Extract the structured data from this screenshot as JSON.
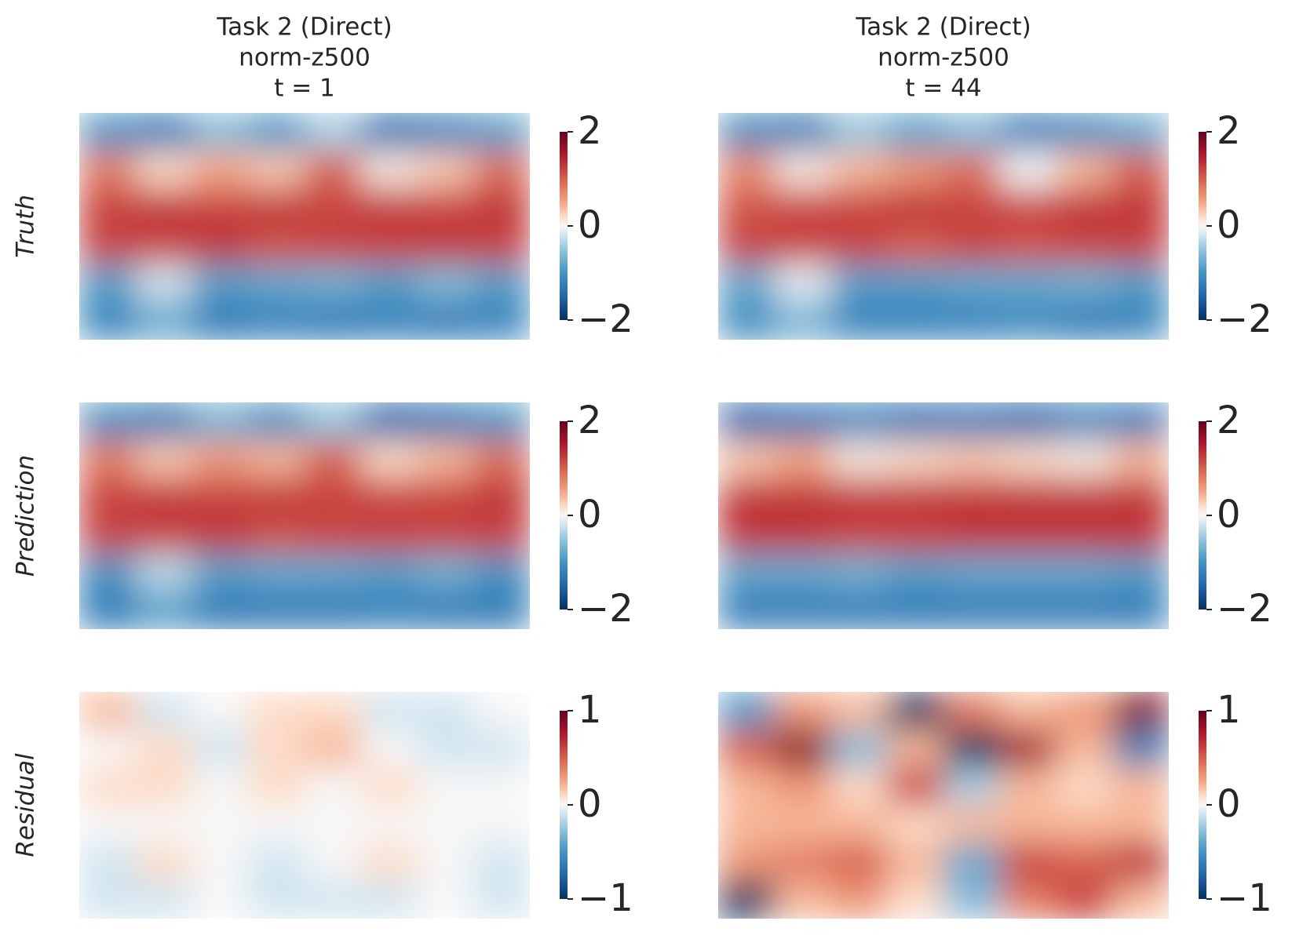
{
  "chart_data": [
    {
      "type": "heatmap",
      "title": [
        "Task 2 (Direct)",
        "norm-z500",
        "t = 1"
      ],
      "ylabel": "Truth",
      "colormap": "RdBu_r",
      "zlim": [
        -2,
        2
      ],
      "zticks": [
        2,
        0,
        {
          "value": -2,
          "label": "−2"
        }
      ],
      "values": [
        [
          -1.0,
          -1.3,
          -0.6,
          -1.0,
          -0.4,
          -1.4,
          -1.2,
          -0.9
        ],
        [
          0.8,
          0.2,
          0.5,
          0.3,
          1.0,
          0.1,
          0.3,
          0.9
        ],
        [
          1.2,
          1.3,
          1.2,
          1.3,
          1.2,
          1.3,
          1.2,
          1.3
        ],
        [
          1.2,
          1.2,
          1.3,
          1.1,
          1.2,
          1.2,
          1.3,
          1.2
        ],
        [
          -0.9,
          -0.2,
          -0.9,
          -0.8,
          -0.7,
          -0.9,
          -0.6,
          -0.9
        ],
        [
          -1.2,
          -0.8,
          -1.3,
          -1.2,
          -1.3,
          -1.2,
          -1.3,
          -1.2
        ]
      ]
    },
    {
      "type": "heatmap",
      "title": [
        "Task 2 (Direct)",
        "norm-z500",
        "t = 44"
      ],
      "colormap": "RdBu_r",
      "zlim": [
        -2,
        2
      ],
      "zticks": [
        2,
        0,
        {
          "value": -2,
          "label": "−2"
        }
      ],
      "values": [
        [
          -1.1,
          -1.3,
          -0.5,
          -0.9,
          -0.6,
          -1.3,
          -1.1,
          -0.8
        ],
        [
          0.7,
          0.1,
          0.4,
          0.6,
          0.9,
          0.0,
          0.4,
          1.0
        ],
        [
          1.1,
          1.2,
          1.2,
          1.3,
          1.2,
          1.2,
          1.3,
          1.3
        ],
        [
          1.2,
          1.2,
          1.2,
          1.0,
          1.2,
          1.1,
          1.2,
          1.2
        ],
        [
          -0.8,
          -0.1,
          -0.9,
          -0.9,
          -0.8,
          -0.8,
          -0.7,
          -0.9
        ],
        [
          -1.1,
          -0.7,
          -1.2,
          -1.2,
          -1.2,
          -1.1,
          -1.3,
          -1.2
        ]
      ]
    },
    {
      "type": "heatmap",
      "ylabel": "Prediction",
      "colormap": "RdBu_r",
      "zlim": [
        -2,
        2
      ],
      "zticks": [
        2,
        0,
        {
          "value": -2,
          "label": "−2"
        }
      ],
      "values": [
        [
          -1.1,
          -1.3,
          -0.7,
          -1.1,
          -0.5,
          -1.5,
          -1.3,
          -1.0
        ],
        [
          0.8,
          0.3,
          0.6,
          0.4,
          1.0,
          0.2,
          0.4,
          0.9
        ],
        [
          1.2,
          1.3,
          1.2,
          1.3,
          1.2,
          1.2,
          1.2,
          1.3
        ],
        [
          1.2,
          1.2,
          1.3,
          1.1,
          1.2,
          1.2,
          1.2,
          1.2
        ],
        [
          -1.0,
          -0.3,
          -0.9,
          -0.8,
          -0.8,
          -0.9,
          -0.7,
          -1.0
        ],
        [
          -1.3,
          -0.9,
          -1.3,
          -1.3,
          -1.3,
          -1.2,
          -1.3,
          -1.3
        ]
      ]
    },
    {
      "type": "heatmap",
      "colormap": "RdBu_r",
      "zlim": [
        -2,
        2
      ],
      "zticks": [
        2,
        0,
        {
          "value": -2,
          "label": "−2"
        }
      ],
      "values": [
        [
          -1.5,
          -1.3,
          -1.2,
          -1.4,
          -1.3,
          -1.5,
          -1.2,
          -1.3
        ],
        [
          0.3,
          0.5,
          0.1,
          0.2,
          0.3,
          0.2,
          0.1,
          0.4
        ],
        [
          1.3,
          1.3,
          1.3,
          1.3,
          1.3,
          1.3,
          1.3,
          1.3
        ],
        [
          1.3,
          1.3,
          1.2,
          1.2,
          1.3,
          1.3,
          1.3,
          1.3
        ],
        [
          -0.8,
          -0.8,
          -0.7,
          -0.9,
          -0.8,
          -0.8,
          -0.8,
          -0.9
        ],
        [
          -1.3,
          -1.3,
          -1.3,
          -1.3,
          -1.3,
          -1.3,
          -1.3,
          -1.3
        ]
      ]
    },
    {
      "type": "heatmap",
      "ylabel": "Residual",
      "colormap": "RdBu_r",
      "zlim": [
        -1,
        1
      ],
      "zticks": [
        1,
        0,
        {
          "value": -1,
          "label": "−1"
        }
      ],
      "values": [
        [
          0.2,
          -0.1,
          0.0,
          0.1,
          0.1,
          -0.1,
          -0.1,
          0.0
        ],
        [
          0.0,
          0.1,
          -0.1,
          0.1,
          0.2,
          0.0,
          -0.1,
          -0.1
        ],
        [
          0.1,
          0.1,
          0.0,
          0.1,
          0.0,
          0.1,
          0.0,
          0.0
        ],
        [
          0.0,
          0.0,
          0.0,
          0.0,
          0.0,
          0.0,
          0.0,
          0.0
        ],
        [
          -0.1,
          0.1,
          0.0,
          -0.1,
          0.0,
          0.1,
          0.0,
          -0.1
        ],
        [
          -0.1,
          -0.1,
          0.0,
          -0.1,
          -0.1,
          -0.1,
          0.0,
          -0.1
        ]
      ]
    },
    {
      "type": "heatmap",
      "colormap": "RdBu_r",
      "zlim": [
        -1,
        1
      ],
      "zticks": [
        1,
        0,
        {
          "value": -1,
          "label": "−1"
        }
      ],
      "values": [
        [
          -0.5,
          0.3,
          0.2,
          -1.0,
          0.4,
          0.2,
          0.3,
          0.9
        ],
        [
          0.5,
          0.9,
          -0.3,
          0.2,
          -1.2,
          0.8,
          0.2,
          -0.6
        ],
        [
          0.2,
          0.3,
          0.1,
          0.6,
          -0.2,
          0.2,
          0.1,
          0.2
        ],
        [
          0.2,
          0.2,
          0.2,
          0.1,
          0.2,
          0.2,
          0.2,
          0.2
        ],
        [
          0.3,
          0.4,
          0.5,
          0.2,
          -0.4,
          0.6,
          0.5,
          0.7
        ],
        [
          -1.1,
          0.2,
          0.3,
          0.1,
          -0.3,
          0.4,
          0.6,
          0.2
        ]
      ]
    }
  ]
}
